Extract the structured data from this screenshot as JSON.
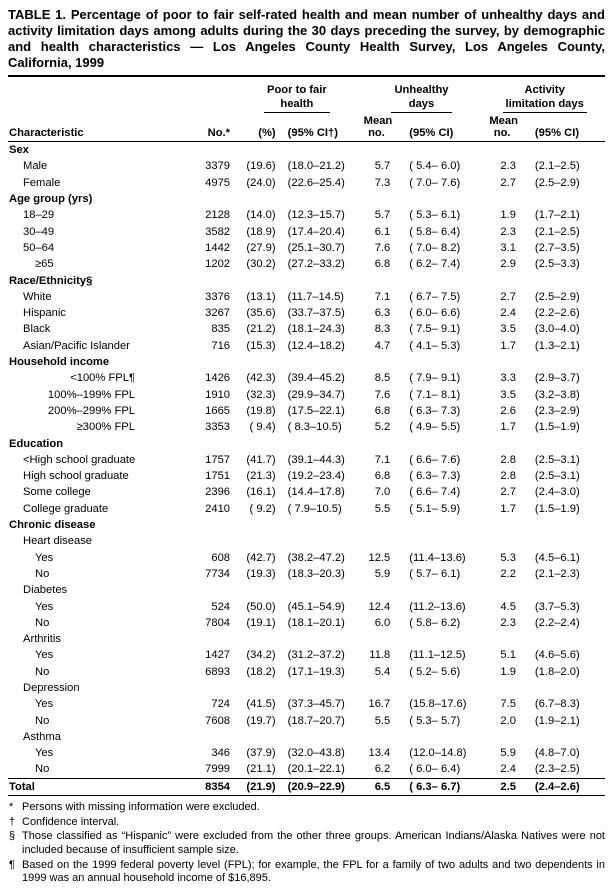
{
  "title": "TABLE 1. Percentage of poor to fair self-rated health and mean number of unhealthy days and activity limitation days among adults during the 30 days preceding the survey, by demographic and health characteristics — Los Angeles County Health Survey, Los Angeles County, California, 1999",
  "table": {
    "mean_label": "Mean",
    "groups": [
      {
        "line1": "Poor to fair",
        "line2": "health"
      },
      {
        "line1": "Unhealthy",
        "line2": "days"
      },
      {
        "line1": "Activity",
        "line2": "limitation days"
      }
    ],
    "columns": [
      "Characteristic",
      "No.*",
      "(%)",
      "(95% CI†)",
      "no.",
      "(95% CI)",
      "no.",
      "(95% CI)"
    ],
    "rows": [
      {
        "type": "section",
        "indent": 0,
        "label": "Sex"
      },
      {
        "type": "data",
        "indent": 1,
        "label": "Male",
        "cells": [
          "3379",
          "(19.6)",
          "(18.0–21.2)",
          "5.7",
          "( 5.4– 6.0)",
          "2.3",
          "(2.1–2.5)"
        ]
      },
      {
        "type": "data",
        "indent": 1,
        "label": "Female",
        "cells": [
          "4975",
          "(24.0)",
          "(22.6–25.4)",
          "7.3",
          "( 7.0– 7.6)",
          "2.7",
          "(2.5–2.9)"
        ]
      },
      {
        "type": "section",
        "indent": 0,
        "label": "Age group (yrs)"
      },
      {
        "type": "data",
        "indent": 1,
        "label": "18–29",
        "cells": [
          "2128",
          "(14.0)",
          "(12.3–15.7)",
          "5.7",
          "( 5.3– 6.1)",
          "1.9",
          "(1.7–2.1)"
        ]
      },
      {
        "type": "data",
        "indent": 1,
        "label": "30–49",
        "cells": [
          "3582",
          "(18.9)",
          "(17.4–20.4)",
          "6.1",
          "( 5.8– 6.4)",
          "2.3",
          "(2.1–2.5)"
        ]
      },
      {
        "type": "data",
        "indent": 1,
        "label": "50–64",
        "cells": [
          "1442",
          "(27.9)",
          "(25.1–30.7)",
          "7.6",
          "( 7.0– 8.2)",
          "3.1",
          "(2.7–3.5)"
        ]
      },
      {
        "type": "data",
        "indent": 2,
        "label": "≥65",
        "cells": [
          "1202",
          "(30.2)",
          "(27.2–33.2)",
          "6.8",
          "( 6.2– 7.4)",
          "2.9",
          "(2.5–3.3)"
        ]
      },
      {
        "type": "section",
        "indent": 0,
        "label": "Race/Ethnicity§"
      },
      {
        "type": "data",
        "indent": 1,
        "label": "White",
        "cells": [
          "3376",
          "(13.1)",
          "(11.7–14.5)",
          "7.1",
          "( 6.7– 7.5)",
          "2.7",
          "(2.5–2.9)"
        ]
      },
      {
        "type": "data",
        "indent": 1,
        "label": "Hispanic",
        "cells": [
          "3267",
          "(35.6)",
          "(33.7–37.5)",
          "6.3",
          "( 6.0– 6.6)",
          "2.4",
          "(2.2–2.6)"
        ]
      },
      {
        "type": "data",
        "indent": 1,
        "label": "Black",
        "cells": [
          "835",
          "(21.2)",
          "(18.1–24.3)",
          "8.3",
          "( 7.5– 9.1)",
          "3.5",
          "(3.0–4.0)"
        ]
      },
      {
        "type": "data",
        "indent": 1,
        "label": "Asian/Pacific Islander",
        "cells": [
          "716",
          "(15.3)",
          "(12.4–18.2)",
          "4.7",
          "( 4.1– 5.3)",
          "1.7",
          "(1.3–2.1)"
        ]
      },
      {
        "type": "section",
        "indent": 0,
        "label": "Household income"
      },
      {
        "type": "data",
        "indent": 0,
        "fpl": true,
        "label": "<100% FPL¶",
        "cells": [
          "1426",
          "(42.3)",
          "(39.4–45.2)",
          "8.5",
          "( 7.9– 9.1)",
          "3.3",
          "(2.9–3.7)"
        ]
      },
      {
        "type": "data",
        "indent": 0,
        "fpl": true,
        "label": "100%–199% FPL",
        "cells": [
          "1910",
          "(32.3)",
          "(29.9–34.7)",
          "7.6",
          "( 7.1– 8.1)",
          "3.5",
          "(3.2–3.8)"
        ]
      },
      {
        "type": "data",
        "indent": 0,
        "fpl": true,
        "label": "200%–299% FPL",
        "cells": [
          "1665",
          "(19.8)",
          "(17.5–22.1)",
          "6.8",
          "( 6.3– 7.3)",
          "2.6",
          "(2.3–2.9)"
        ]
      },
      {
        "type": "data",
        "indent": 0,
        "fpl": true,
        "label": "≥300% FPL",
        "cells": [
          "3353",
          "( 9.4)",
          "( 8.3–10.5)",
          "5.2",
          "( 4.9– 5.5)",
          "1.7",
          "(1.5–1.9)"
        ]
      },
      {
        "type": "section",
        "indent": 0,
        "label": "Education"
      },
      {
        "type": "data",
        "indent": 1,
        "label": "<High school graduate",
        "cells": [
          "1757",
          "(41.7)",
          "(39.1–44.3)",
          "7.1",
          "( 6.6– 7.6)",
          "2.8",
          "(2.5–3.1)"
        ]
      },
      {
        "type": "data",
        "indent": 1,
        "label": "High school graduate",
        "cells": [
          "1751",
          "(21.3)",
          "(19.2–23.4)",
          "6.8",
          "( 6.3– 7.3)",
          "2.8",
          "(2.5–3.1)"
        ]
      },
      {
        "type": "data",
        "indent": 1,
        "label": "Some college",
        "cells": [
          "2396",
          "(16.1)",
          "(14.4–17.8)",
          "7.0",
          "( 6.6– 7.4)",
          "2.7",
          "(2.4–3.0)"
        ]
      },
      {
        "type": "data",
        "indent": 1,
        "label": "College graduate",
        "cells": [
          "2410",
          "( 9.2)",
          "( 7.9–10.5)",
          "5.5",
          "( 5.1– 5.9)",
          "1.7",
          "(1.5–1.9)"
        ]
      },
      {
        "type": "section",
        "indent": 0,
        "label": "Chronic disease"
      },
      {
        "type": "sub",
        "indent": 1,
        "label": "Heart disease"
      },
      {
        "type": "data",
        "indent": 2,
        "label": "Yes",
        "cells": [
          "608",
          "(42.7)",
          "(38.2–47.2)",
          "12.5",
          "(11.4–13.6)",
          "5.3",
          "(4.5–6.1)"
        ]
      },
      {
        "type": "data",
        "indent": 2,
        "label": "No",
        "cells": [
          "7734",
          "(19.3)",
          "(18.3–20.3)",
          "5.9",
          "( 5.7– 6.1)",
          "2.2",
          "(2.1–2.3)"
        ]
      },
      {
        "type": "sub",
        "indent": 1,
        "label": "Diabetes"
      },
      {
        "type": "data",
        "indent": 2,
        "label": "Yes",
        "cells": [
          "524",
          "(50.0)",
          "(45.1–54.9)",
          "12.4",
          "(11.2–13.6)",
          "4.5",
          "(3.7–5.3)"
        ]
      },
      {
        "type": "data",
        "indent": 2,
        "label": "No",
        "cells": [
          "7804",
          "(19.1)",
          "(18.1–20.1)",
          "6.0",
          "( 5.8– 6.2)",
          "2.3",
          "(2.2–2.4)"
        ]
      },
      {
        "type": "sub",
        "indent": 1,
        "label": "Arthritis"
      },
      {
        "type": "data",
        "indent": 2,
        "label": "Yes",
        "cells": [
          "1427",
          "(34.2)",
          "(31.2–37.2)",
          "11.8",
          "(11.1–12.5)",
          "5.1",
          "(4.6–5.6)"
        ]
      },
      {
        "type": "data",
        "indent": 2,
        "label": "No",
        "cells": [
          "6893",
          "(18.2)",
          "(17.1–19.3)",
          "5.4",
          "( 5.2– 5.6)",
          "1.9",
          "(1.8–2.0)"
        ]
      },
      {
        "type": "sub",
        "indent": 1,
        "label": "Depression"
      },
      {
        "type": "data",
        "indent": 2,
        "label": "Yes",
        "cells": [
          "724",
          "(41.5)",
          "(37.3–45.7)",
          "16.7",
          "(15.8–17.6)",
          "7.5",
          "(6.7–8.3)"
        ]
      },
      {
        "type": "data",
        "indent": 2,
        "label": "No",
        "cells": [
          "7608",
          "(19.7)",
          "(18.7–20.7)",
          "5.5",
          "( 5.3– 5.7)",
          "2.0",
          "(1.9–2.1)"
        ]
      },
      {
        "type": "sub",
        "indent": 1,
        "label": "Asthma"
      },
      {
        "type": "data",
        "indent": 2,
        "label": "Yes",
        "cells": [
          "346",
          "(37.9)",
          "(32.0–43.8)",
          "13.4",
          "(12.0–14.8)",
          "5.9",
          "(4.8–7.0)"
        ]
      },
      {
        "type": "data",
        "indent": 2,
        "label": "No",
        "cells": [
          "7999",
          "(21.1)",
          "(20.1–22.1)",
          "6.2",
          "( 6.0– 6.4)",
          "2.4",
          "(2.3–2.5)"
        ]
      },
      {
        "type": "total",
        "indent": 0,
        "label": "Total",
        "cells": [
          "8354",
          "(21.9)",
          "(20.9–22.9)",
          "6.5",
          "( 6.3– 6.7)",
          "2.5",
          "(2.4–2.6)"
        ]
      }
    ]
  },
  "footnotes": [
    {
      "marker": "*",
      "text": "Persons with missing information were excluded."
    },
    {
      "marker": "†",
      "text": "Confidence interval."
    },
    {
      "marker": "§",
      "text": "Those classified as “Hispanic” were excluded from the other three groups. American Indians/Alaska Natives were not included because of insufficient sample size."
    },
    {
      "marker": "¶",
      "text": "Based on the 1999 federal poverty level (FPL); for example, the FPL for a family of two adults and two dependents in 1999 was an annual household income of $16,895."
    }
  ]
}
